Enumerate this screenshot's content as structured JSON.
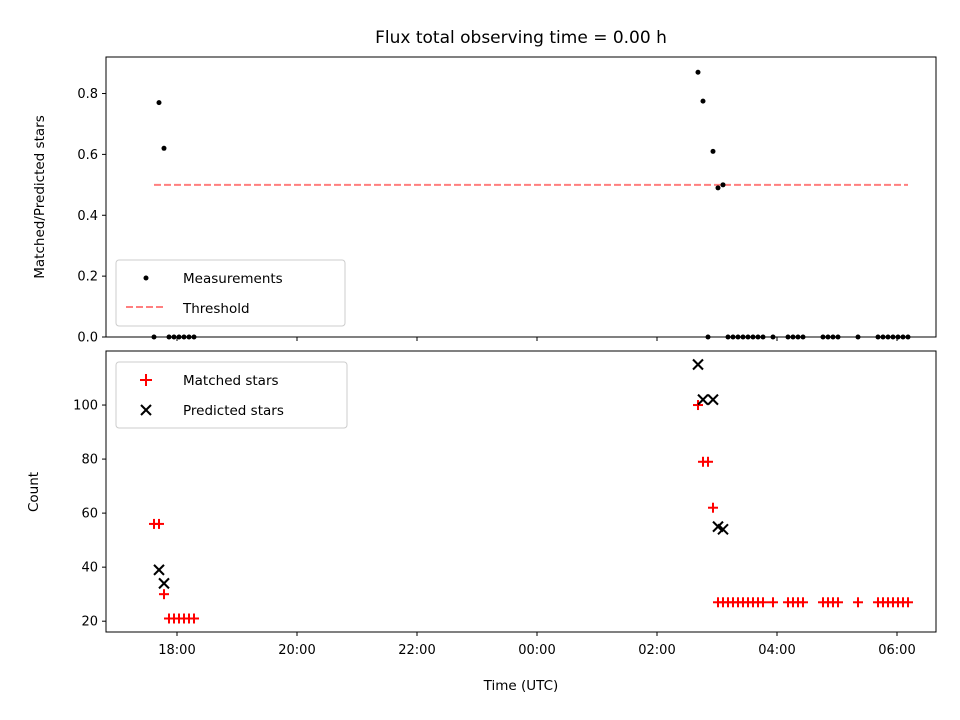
{
  "chart_data": [
    {
      "type": "scatter",
      "title": "Flux total observing time = 0.00 h",
      "xlabel": "",
      "ylabel": "Matched/Predicted stars",
      "ylim": [
        0,
        0.92
      ],
      "yticks": [
        "0.0",
        "0.2",
        "0.4",
        "0.6",
        "0.8"
      ],
      "yticks_values": [
        0,
        0.2,
        0.4,
        0.6,
        0.8
      ],
      "legend": {
        "position": "lower-left",
        "entries": [
          "Measurements",
          "Threshold"
        ]
      },
      "series": [
        {
          "name": "Measurements",
          "marker": "dot",
          "color": "#000000",
          "points": [
            [
              "17:37",
              0.0
            ],
            [
              "17:42",
              0.77
            ],
            [
              "17:47",
              0.62
            ],
            [
              "17:52",
              0.0
            ],
            [
              "17:57",
              0.0
            ],
            [
              "18:02",
              0.0
            ],
            [
              "18:07",
              0.0
            ],
            [
              "18:12",
              0.0
            ],
            [
              "18:17",
              0.0
            ],
            [
              "02:41",
              0.87
            ],
            [
              "02:46",
              0.775
            ],
            [
              "02:51",
              0.0
            ],
            [
              "02:56",
              0.61
            ],
            [
              "03:01",
              0.49
            ],
            [
              "03:06",
              0.5
            ],
            [
              "03:11",
              0.0
            ],
            [
              "03:16",
              0.0
            ],
            [
              "03:21",
              0.0
            ],
            [
              "03:26",
              0.0
            ],
            [
              "03:31",
              0.0
            ],
            [
              "03:36",
              0.0
            ],
            [
              "03:41",
              0.0
            ],
            [
              "03:46",
              0.0
            ],
            [
              "03:56",
              0.0
            ],
            [
              "04:11",
              0.0
            ],
            [
              "04:16",
              0.0
            ],
            [
              "04:21",
              0.0
            ],
            [
              "04:26",
              0.0
            ],
            [
              "04:46",
              0.0
            ],
            [
              "04:51",
              0.0
            ],
            [
              "04:56",
              0.0
            ],
            [
              "05:01",
              0.0
            ],
            [
              "05:21",
              0.0
            ],
            [
              "05:41",
              0.0
            ],
            [
              "05:46",
              0.0
            ],
            [
              "05:51",
              0.0
            ],
            [
              "05:56",
              0.0
            ],
            [
              "06:01",
              0.0
            ],
            [
              "06:06",
              0.0
            ],
            [
              "06:11",
              0.0
            ]
          ]
        },
        {
          "name": "Threshold",
          "marker": "dashed-line",
          "color": "#ff7f7f",
          "points": [
            [
              "17:37",
              0.5
            ],
            [
              "06:11",
              0.5
            ]
          ]
        }
      ]
    },
    {
      "type": "scatter",
      "title": "",
      "xlabel": "Time (UTC)",
      "ylabel": "Count",
      "ylim": [
        16,
        120
      ],
      "yticks": [
        "20",
        "40",
        "60",
        "80",
        "100"
      ],
      "yticks_values": [
        20,
        40,
        60,
        80,
        100
      ],
      "xticks": [
        "18:00",
        "20:00",
        "22:00",
        "00:00",
        "02:00",
        "04:00",
        "06:00"
      ],
      "legend": {
        "position": "top-left",
        "entries": [
          "Matched stars",
          "Predicted stars"
        ]
      },
      "series": [
        {
          "name": "Matched stars",
          "marker": "plus",
          "color": "#ff0000",
          "points": [
            [
              "17:37",
              56
            ],
            [
              "17:42",
              56
            ],
            [
              "17:47",
              30
            ],
            [
              "17:52",
              21
            ],
            [
              "17:57",
              21
            ],
            [
              "18:02",
              21
            ],
            [
              "18:07",
              21
            ],
            [
              "18:12",
              21
            ],
            [
              "18:17",
              21
            ],
            [
              "02:41",
              100
            ],
            [
              "02:46",
              79
            ],
            [
              "02:51",
              79
            ],
            [
              "02:56",
              62
            ],
            [
              "03:01",
              27
            ],
            [
              "03:06",
              27
            ],
            [
              "03:11",
              27
            ],
            [
              "03:16",
              27
            ],
            [
              "03:21",
              27
            ],
            [
              "03:26",
              27
            ],
            [
              "03:31",
              27
            ],
            [
              "03:36",
              27
            ],
            [
              "03:41",
              27
            ],
            [
              "03:46",
              27
            ],
            [
              "03:56",
              27
            ],
            [
              "04:11",
              27
            ],
            [
              "04:16",
              27
            ],
            [
              "04:21",
              27
            ],
            [
              "04:26",
              27
            ],
            [
              "04:46",
              27
            ],
            [
              "04:51",
              27
            ],
            [
              "04:56",
              27
            ],
            [
              "05:01",
              27
            ],
            [
              "05:21",
              27
            ],
            [
              "05:41",
              27
            ],
            [
              "05:46",
              27
            ],
            [
              "05:51",
              27
            ],
            [
              "05:56",
              27
            ],
            [
              "06:01",
              27
            ],
            [
              "06:06",
              27
            ],
            [
              "06:11",
              27
            ]
          ]
        },
        {
          "name": "Predicted stars",
          "marker": "x",
          "color": "#000000",
          "points": [
            [
              "17:42",
              39
            ],
            [
              "17:47",
              34
            ],
            [
              "02:41",
              115
            ],
            [
              "02:46",
              102
            ],
            [
              "02:56",
              102
            ],
            [
              "03:01",
              55
            ],
            [
              "03:06",
              54
            ]
          ]
        }
      ]
    }
  ]
}
